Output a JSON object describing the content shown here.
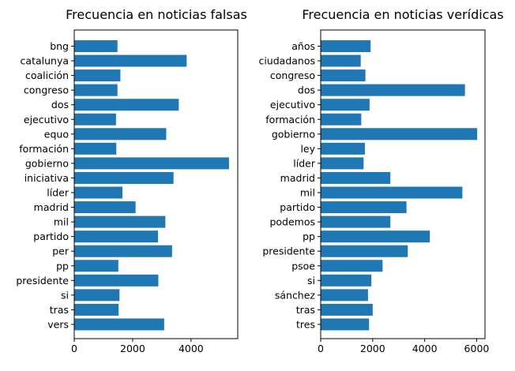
{
  "chart_data": [
    {
      "type": "bar",
      "orientation": "horizontal",
      "title": "Frecuencia en noticias falsas",
      "xlabel": "",
      "ylabel": "",
      "xlim": [
        0,
        5600
      ],
      "xticks": [
        0,
        2000,
        4000
      ],
      "xtick_labels": [
        "0",
        "2000",
        "4000"
      ],
      "categories": [
        "bng",
        "catalunya",
        "coalición",
        "congreso",
        "dos",
        "ejecutivo",
        "equo",
        "formación",
        "gobierno",
        "iniciativa",
        "líder",
        "madrid",
        "mil",
        "partido",
        "per",
        "pp",
        "presidente",
        "si",
        "tras",
        "vers"
      ],
      "values": [
        1480,
        3850,
        1580,
        1480,
        3580,
        1430,
        3150,
        1440,
        5300,
        3400,
        1650,
        2100,
        3120,
        2870,
        3350,
        1510,
        2880,
        1550,
        1520,
        3080
      ],
      "color": "#1f77b4",
      "grid": false,
      "legend": "none"
    },
    {
      "type": "bar",
      "orientation": "horizontal",
      "title": "Frecuencia en noticias verídicas",
      "xlabel": "",
      "ylabel": "",
      "xlim": [
        0,
        6320
      ],
      "xticks": [
        0,
        2000,
        4000,
        6000
      ],
      "xtick_labels": [
        "0",
        "2000",
        "4000",
        "6000"
      ],
      "categories": [
        "años",
        "ciudadanos",
        "congreso",
        "dos",
        "ejecutivo",
        "formación",
        "gobierno",
        "ley",
        "líder",
        "madrid",
        "mil",
        "partido",
        "podemos",
        "pp",
        "presidente",
        "psoe",
        "si",
        "sánchez",
        "tras",
        "tres"
      ],
      "values": [
        1920,
        1540,
        1720,
        5550,
        1880,
        1560,
        6020,
        1700,
        1650,
        2680,
        5450,
        3300,
        2680,
        4200,
        3350,
        2380,
        1950,
        1820,
        2000,
        1860
      ],
      "color": "#1f77b4",
      "grid": false,
      "legend": "none"
    }
  ]
}
